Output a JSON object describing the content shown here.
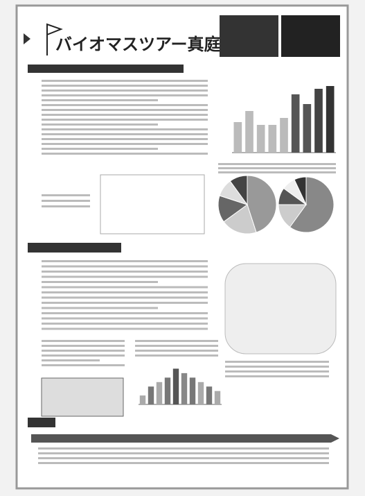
{
  "header": {
    "title": "バイオマスツアー真庭"
  },
  "figures": {
    "bar_top": {
      "type": "bar",
      "values": [
        2.2,
        3.0,
        2.0,
        2.0,
        2.5,
        4.2,
        3.5,
        4.6,
        4.8
      ],
      "colors": [
        "#bbb",
        "#bbb",
        "#bbb",
        "#bbb",
        "#bbb",
        "#555",
        "#555",
        "#444",
        "#333"
      ],
      "ylim": [
        0,
        5
      ]
    },
    "pie_left": {
      "type": "pie",
      "values": [
        45,
        20,
        15,
        10,
        10
      ],
      "colors": [
        "#999",
        "#ccc",
        "#666",
        "#ddd",
        "#444"
      ]
    },
    "pie_right": {
      "type": "pie",
      "values": [
        60,
        15,
        10,
        8,
        7
      ],
      "colors": [
        "#888",
        "#ccc",
        "#555",
        "#eee",
        "#333"
      ]
    },
    "bar_bottom": {
      "type": "bar",
      "values": [
        1,
        2,
        2.5,
        3,
        4,
        3.5,
        3,
        2.5,
        2,
        1.5
      ],
      "colors": [
        "#aaa",
        "#777",
        "#aaa",
        "#777",
        "#555",
        "#888",
        "#777",
        "#aaa",
        "#777",
        "#aaa"
      ],
      "ylim": [
        0,
        4.5
      ]
    }
  }
}
